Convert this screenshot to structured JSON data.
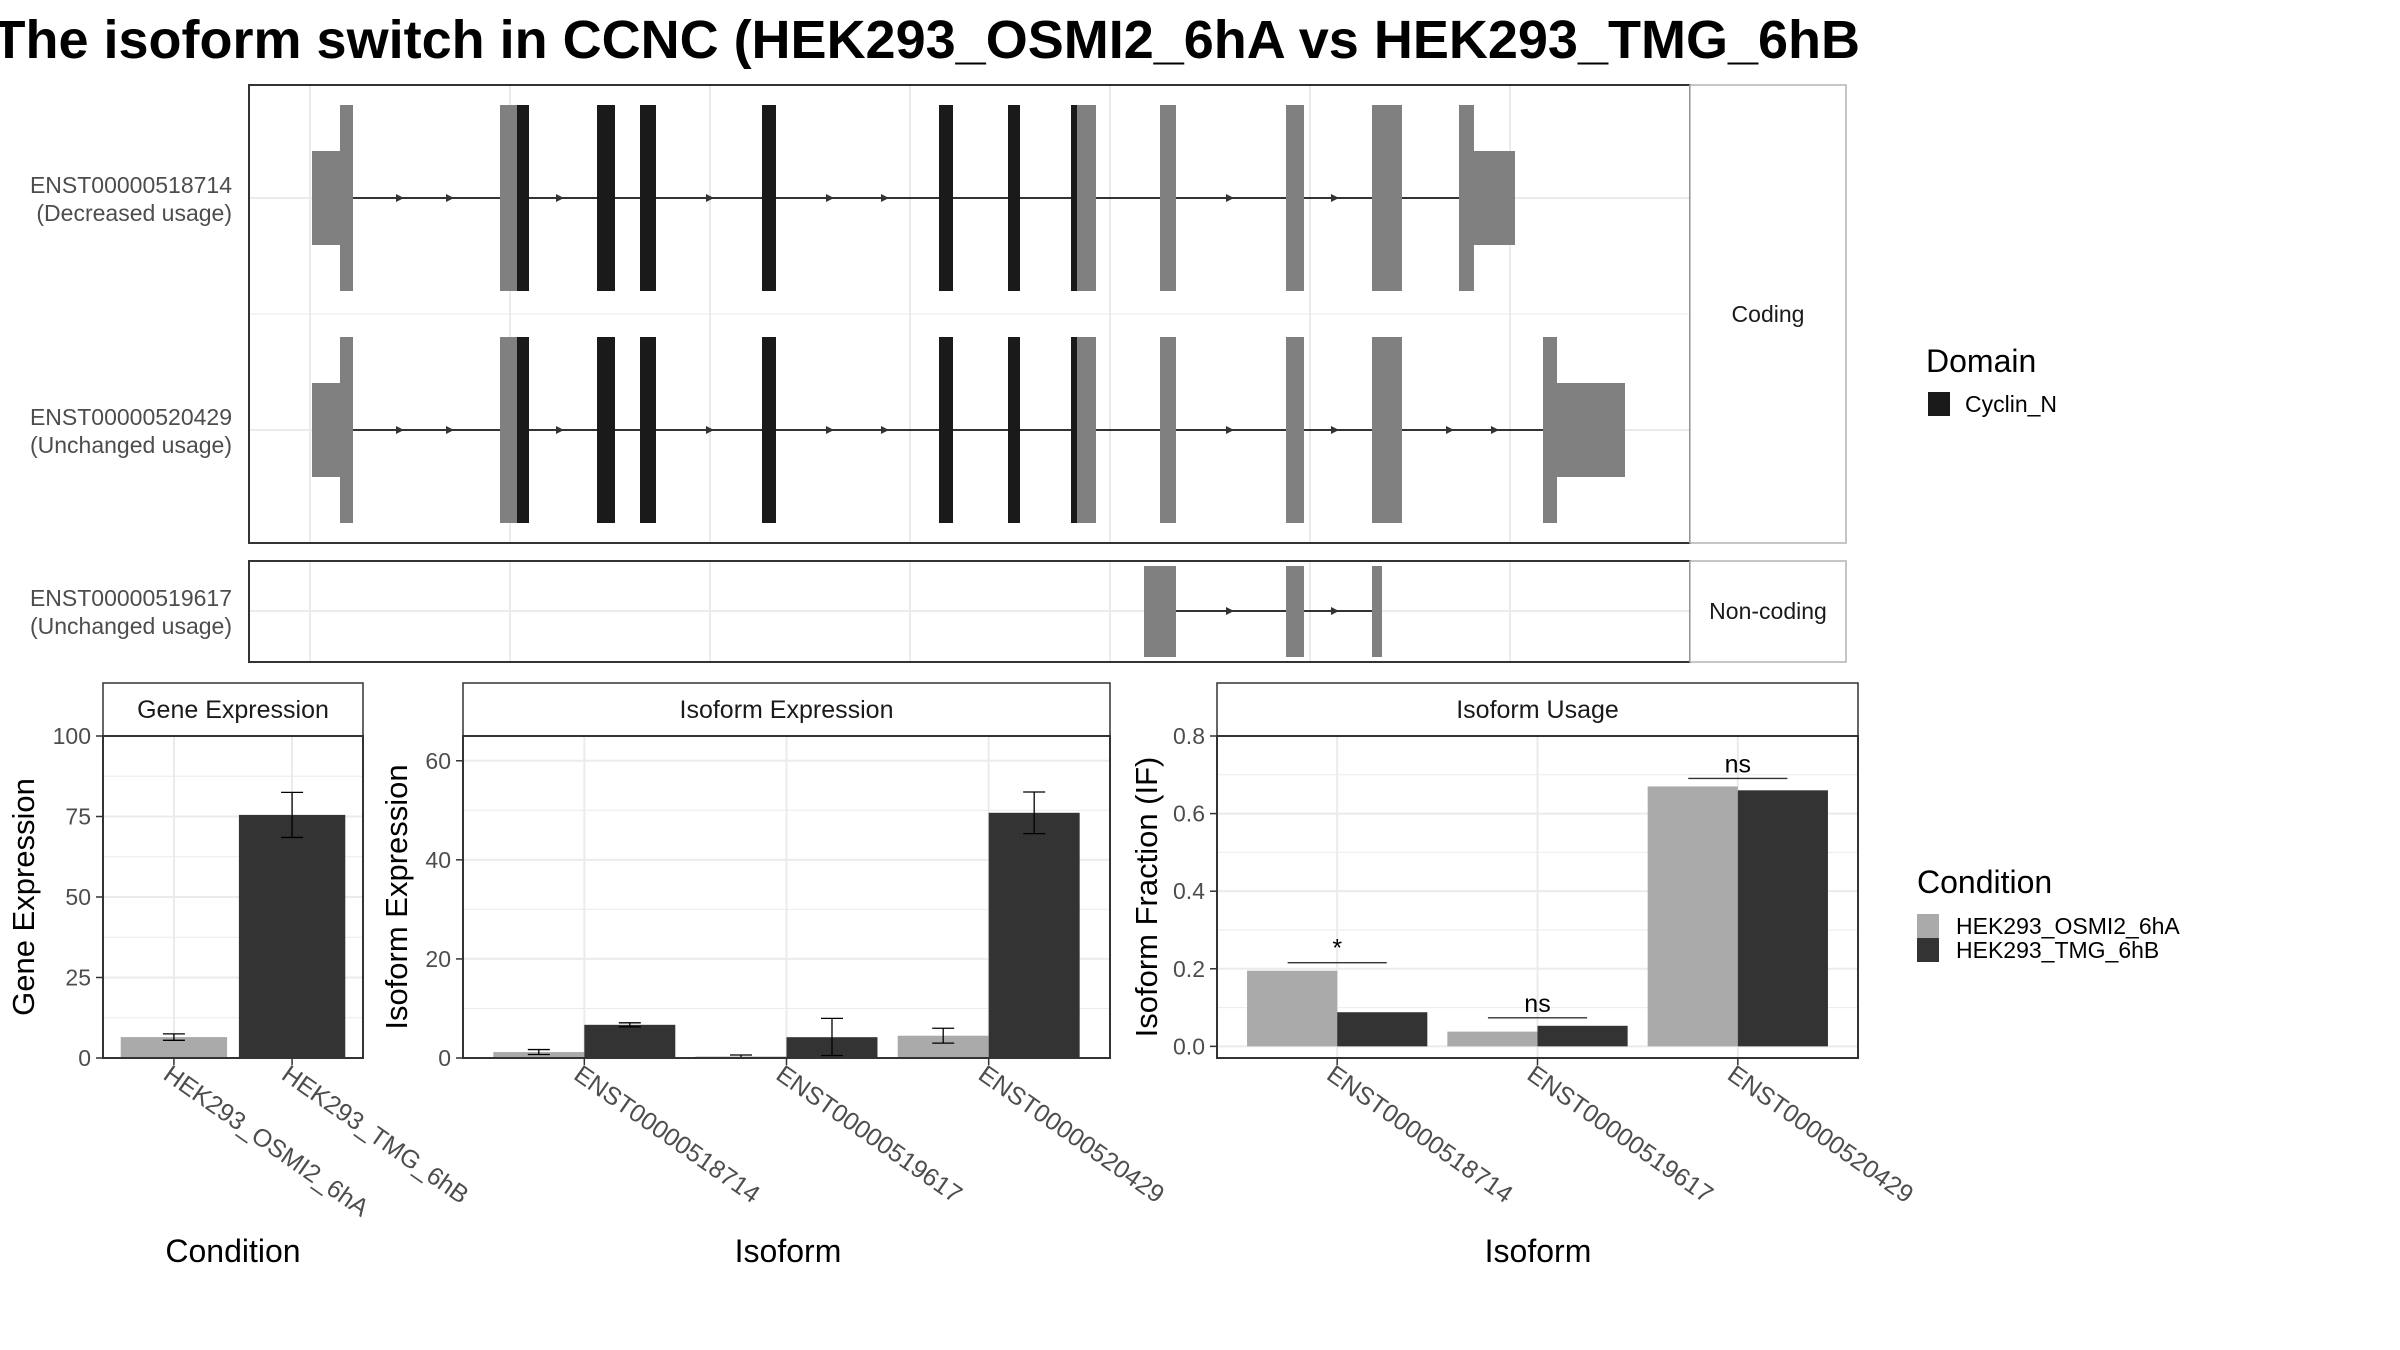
{
  "title": "The isoform switch in CCNC (HEK293_OSMI2_6hA vs HEK293_TMG_6hB",
  "colors": {
    "exon": "#808080",
    "domain": "#1a1a1a",
    "cond_a": "#aaaaaa",
    "cond_b": "#333333",
    "grid": "#ebebeb",
    "panel_border": "#333333",
    "strip_border": "#b3b3b3"
  },
  "structure": {
    "legend_title": "Domain",
    "legend_items": [
      "Cyclin_N"
    ],
    "groups": [
      {
        "label": "Coding",
        "isoforms": [
          {
            "id": "ENST00000518714",
            "usage": "(Decreased usage)"
          },
          {
            "id": "ENST00000520429",
            "usage": "(Unchanged usage)"
          }
        ]
      },
      {
        "label": "Non-coding",
        "isoforms": [
          {
            "id": "ENST00000519617",
            "usage": "(Unchanged usage)"
          }
        ]
      }
    ]
  },
  "condition_legend": {
    "title": "Condition",
    "items": [
      "HEK293_OSMI2_6hA",
      "HEK293_TMG_6hB"
    ]
  },
  "chart_data": [
    {
      "type": "bar",
      "title": "Gene Expression",
      "xlabel": "Condition",
      "ylabel": "Gene Expression",
      "categories": [
        "HEK293_OSMI2_6hA",
        "HEK293_TMG_6hB"
      ],
      "values": [
        6.5,
        75.5
      ],
      "error": [
        [
          5.5,
          7.5
        ],
        [
          68.5,
          82.5
        ]
      ],
      "ylim": [
        0,
        100
      ],
      "yticks": [
        "0",
        "25",
        "50",
        "75",
        "100"
      ],
      "grid": true
    },
    {
      "type": "bar",
      "title": "Isoform Expression",
      "xlabel": "Isoform",
      "ylabel": "Isoform Expression",
      "categories": [
        "ENST00000518714",
        "ENST00000519617",
        "ENST00000520429"
      ],
      "series": [
        {
          "name": "HEK293_OSMI2_6hA",
          "values": [
            1.2,
            0.3,
            4.5
          ],
          "error": [
            [
              0.7,
              1.7
            ],
            [
              0.0,
              0.6
            ],
            [
              3.0,
              6.0
            ]
          ]
        },
        {
          "name": "HEK293_TMG_6hB",
          "values": [
            6.7,
            4.2,
            49.5
          ],
          "error": [
            [
              6.3,
              7.1
            ],
            [
              0.5,
              8.0
            ],
            [
              45.3,
              53.7
            ]
          ]
        }
      ],
      "ylim": [
        0,
        65
      ],
      "yticks": [
        "0",
        "20",
        "40",
        "60"
      ],
      "grid": true
    },
    {
      "type": "bar",
      "title": "Isoform Usage",
      "xlabel": "Isoform",
      "ylabel": "Isoform Fraction (IF)",
      "categories": [
        "ENST00000518714",
        "ENST00000519617",
        "ENST00000520429"
      ],
      "series": [
        {
          "name": "HEK293_OSMI2_6hA",
          "values": [
            0.195,
            0.038,
            0.67
          ]
        },
        {
          "name": "HEK293_TMG_6hB",
          "values": [
            0.088,
            0.053,
            0.66
          ]
        }
      ],
      "significance": [
        "*",
        "ns",
        "ns"
      ],
      "ylim": [
        -0.03,
        0.8
      ],
      "yticks": [
        "0.0",
        "0.2",
        "0.4",
        "0.6",
        "0.8"
      ],
      "grid": true
    }
  ]
}
